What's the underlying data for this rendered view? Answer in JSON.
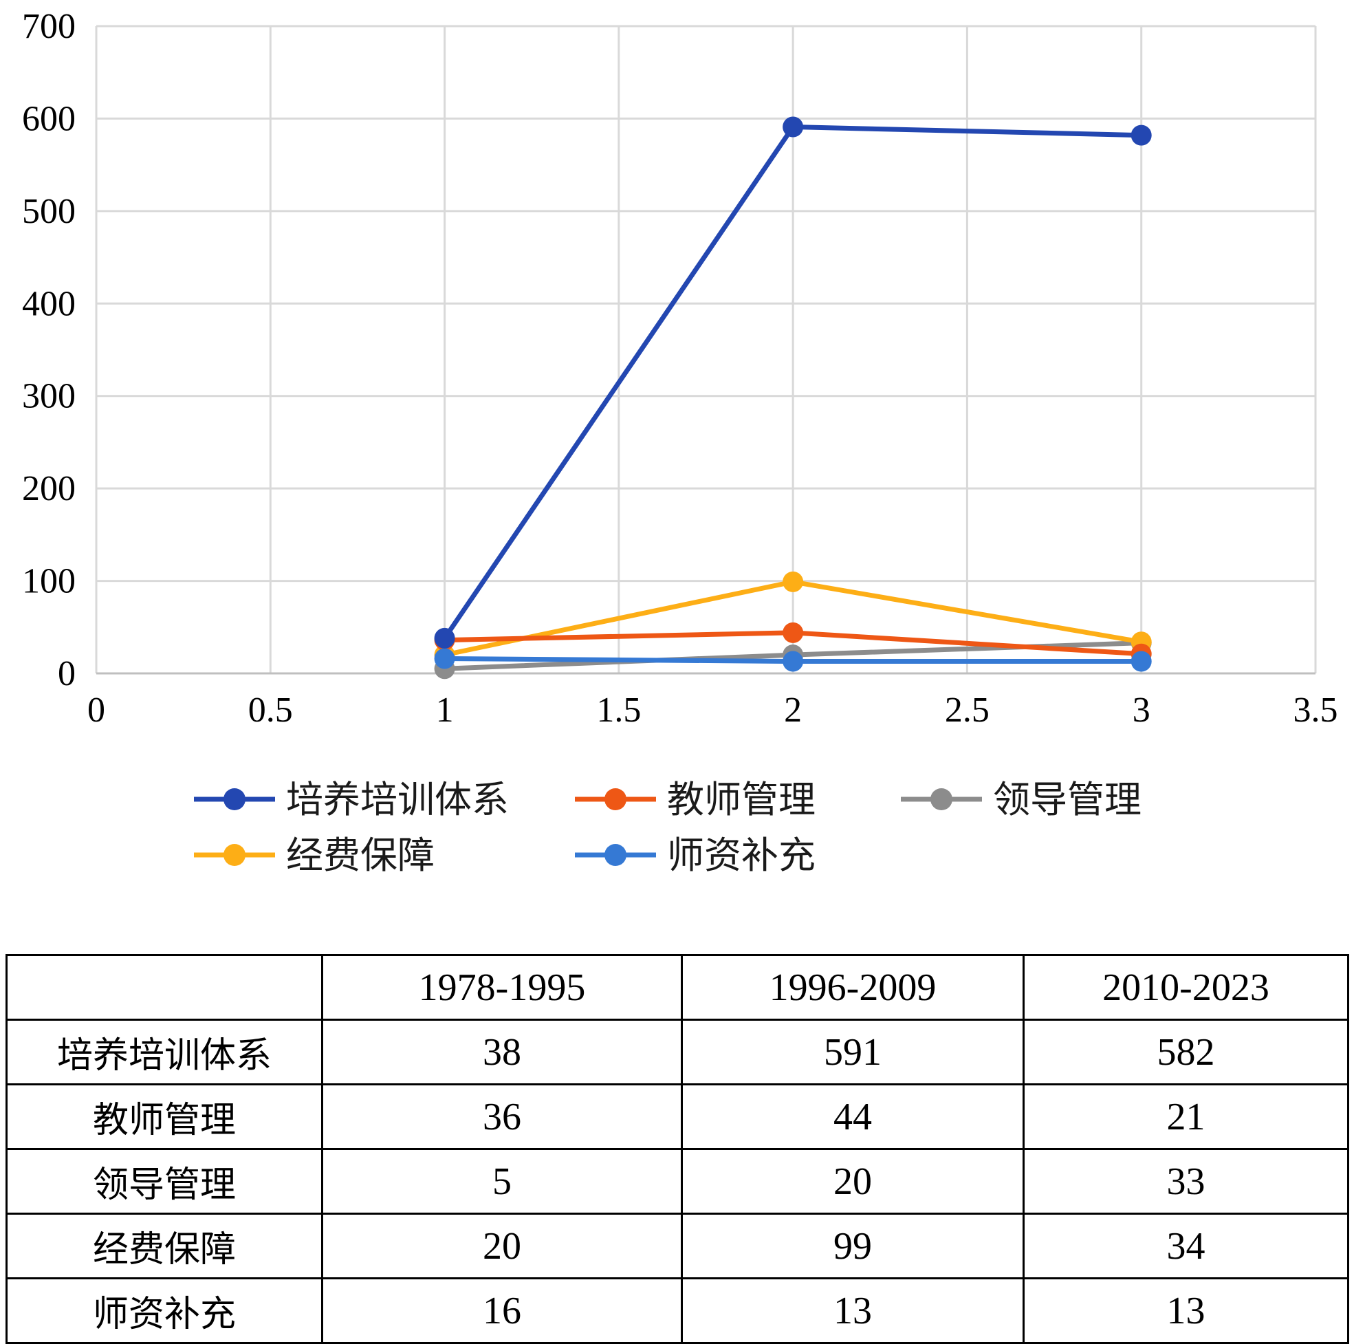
{
  "chart_data": {
    "type": "line",
    "title": "",
    "xlabel": "",
    "ylabel": "",
    "xlim": [
      0,
      3.5
    ],
    "ylim": [
      0,
      700
    ],
    "x_ticks": [
      "0",
      "0.5",
      "1",
      "1.5",
      "2",
      "2.5",
      "3",
      "3.5"
    ],
    "y_ticks": [
      "0",
      "100",
      "200",
      "300",
      "400",
      "500",
      "600",
      "700"
    ],
    "grid": true,
    "legend_position": "bottom",
    "x": [
      1,
      2,
      3
    ],
    "series": [
      {
        "name": "培养培训体系",
        "color": "#2347b1",
        "values": [
          38,
          591,
          582
        ]
      },
      {
        "name": "教师管理",
        "color": "#ee5715",
        "values": [
          36,
          44,
          21
        ]
      },
      {
        "name": "领导管理",
        "color": "#8c8c8c",
        "values": [
          5,
          20,
          33
        ]
      },
      {
        "name": "经费保障",
        "color": "#fdae16",
        "values": [
          20,
          99,
          34
        ]
      },
      {
        "name": "师资补充",
        "color": "#3579d4",
        "values": [
          16,
          13,
          13
        ]
      }
    ]
  },
  "table": {
    "headers": [
      "",
      "1978-1995",
      "1996-2009",
      "2010-2023"
    ],
    "rows": [
      {
        "label": "培养培训体系",
        "cells": [
          "38",
          "591",
          "582"
        ]
      },
      {
        "label": "教师管理",
        "cells": [
          "36",
          "44",
          "21"
        ]
      },
      {
        "label": "领导管理",
        "cells": [
          "5",
          "20",
          "33"
        ]
      },
      {
        "label": "经费保障",
        "cells": [
          "20",
          "99",
          "34"
        ]
      },
      {
        "label": "师资补充",
        "cells": [
          "16",
          "13",
          "13"
        ]
      }
    ]
  }
}
